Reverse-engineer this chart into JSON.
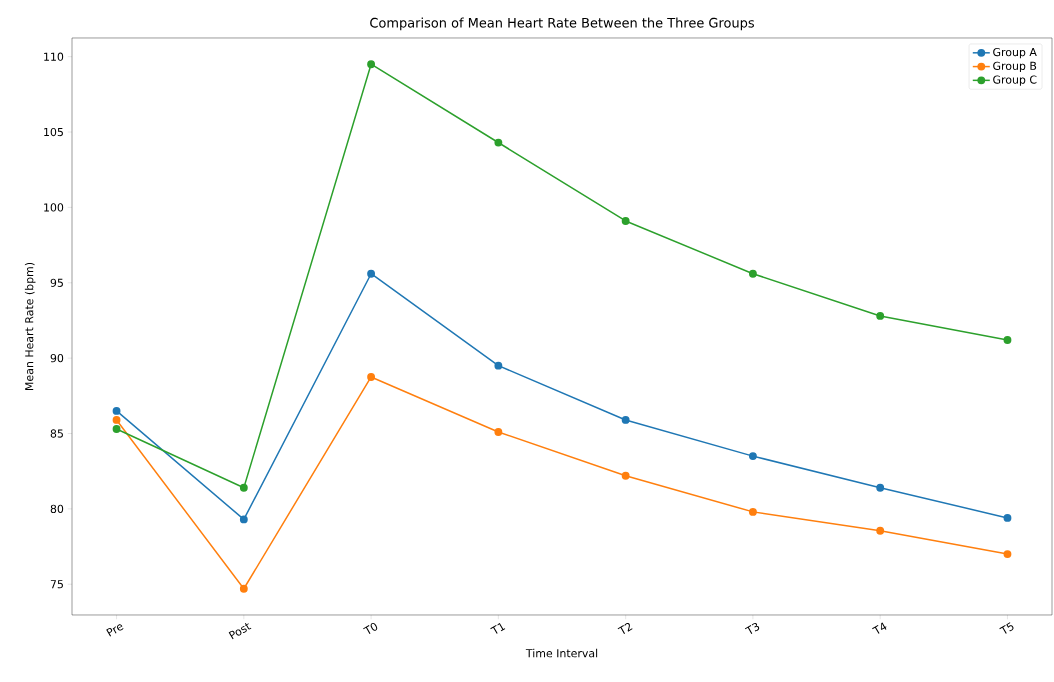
{
  "chart_data": {
    "type": "line",
    "title": "Comparison of Mean Heart Rate Between the Three Groups",
    "xlabel": "Time Interval",
    "ylabel": "Mean Heart Rate (bpm)",
    "categories": [
      "Pre",
      "Post",
      "T0",
      "T1",
      "T2",
      "T3",
      "T4",
      "T5"
    ],
    "series": [
      {
        "name": "Group A",
        "color": "#1f77b4",
        "values": [
          86.5,
          79.3,
          95.6,
          89.5,
          85.9,
          83.5,
          81.4,
          79.4
        ]
      },
      {
        "name": "Group B",
        "color": "#ff7f0e",
        "values": [
          85.9,
          74.7,
          88.75,
          85.1,
          82.2,
          79.8,
          78.55,
          77.0
        ]
      },
      {
        "name": "Group C",
        "color": "#2ca02c",
        "values": [
          85.3,
          81.4,
          109.5,
          104.3,
          99.1,
          95.6,
          92.8,
          91.2
        ]
      }
    ],
    "ylim": [
      72.96,
      111.24
    ],
    "yticks": [
      75,
      80,
      85,
      90,
      95,
      100,
      105,
      110
    ],
    "grid": false,
    "legend": "top right",
    "marker": "circle",
    "line_style": "solid"
  }
}
